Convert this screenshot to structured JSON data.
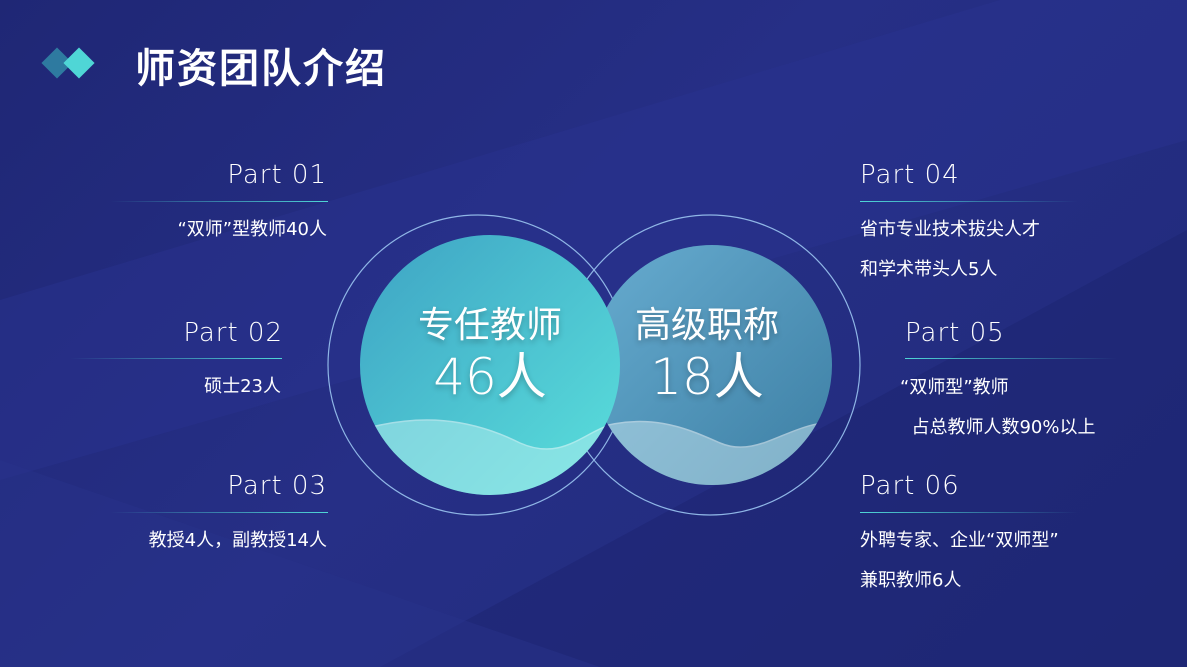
{
  "title": "师资团队介绍",
  "colors": {
    "accent": "#4fd6d6",
    "background": "#232c80",
    "circle_left": "#4ccbd3",
    "circle_right": "#4a8db5"
  },
  "center": {
    "left": {
      "label": "专任教师",
      "value": "46人"
    },
    "right": {
      "label": "高级职称",
      "value": "18人"
    }
  },
  "parts": [
    {
      "label": "Part 01",
      "text": "“双师”型教师40人"
    },
    {
      "label": "Part 02",
      "text": "硕士23人"
    },
    {
      "label": "Part 03",
      "text": "教授4人，副教授14人"
    },
    {
      "label": "Part 04",
      "text": "省市专业技术拔尖人才\n和学术带头人5人"
    },
    {
      "label": "Part 05",
      "text": "“双师型”教师\n  占总教师人数90%以上"
    },
    {
      "label": "Part 06",
      "text": "外聘专家、企业“双师型”\n兼职教师6人"
    }
  ]
}
